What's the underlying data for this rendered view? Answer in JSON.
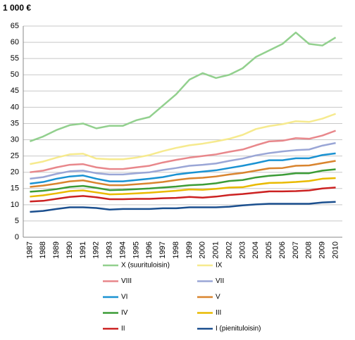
{
  "chart_data": {
    "type": "line",
    "title": "1 000 €",
    "categories": [
      "1987",
      "1988",
      "1989",
      "1990",
      "1991",
      "1992",
      "1993",
      "1994",
      "1995",
      "1996",
      "1997",
      "1998",
      "1999",
      "2000",
      "2001",
      "2002",
      "2003",
      "2004",
      "2005",
      "2006",
      "2007",
      "2008",
      "2009",
      "2010"
    ],
    "ylim": [
      0,
      65
    ],
    "yticks": [
      0,
      5,
      10,
      15,
      20,
      25,
      30,
      35,
      40,
      45,
      50,
      55,
      60,
      65
    ],
    "grid": true,
    "series": [
      {
        "name": "X (suurituloisin)",
        "color": "#92d08e",
        "values": [
          29.5,
          31,
          33,
          34.5,
          35,
          33.5,
          34.3,
          34.3,
          36,
          37,
          40.5,
          44,
          48.5,
          50.5,
          49,
          50,
          52,
          55.5,
          57.5,
          59.5,
          63,
          59.5,
          59,
          61.5
        ]
      },
      {
        "name": "IX",
        "color": "#f6ea8e",
        "values": [
          22.5,
          23.3,
          24.5,
          25.5,
          25.7,
          24.2,
          24,
          24,
          24.5,
          25.3,
          26.5,
          27.5,
          28.3,
          28.8,
          29.5,
          30.3,
          31.5,
          33.3,
          34.2,
          34.8,
          35.7,
          35.5,
          36.5,
          38
        ]
      },
      {
        "name": "VIII",
        "color": "#e8878b",
        "values": [
          20,
          20.5,
          21.5,
          22.3,
          22.5,
          21.5,
          21,
          21,
          21.5,
          22,
          23,
          23.8,
          24.5,
          25,
          25.5,
          26.3,
          27,
          28.3,
          29.5,
          29.7,
          30.5,
          30.3,
          31.3,
          32.8
        ]
      },
      {
        "name": "VII",
        "color": "#9aa6d6",
        "values": [
          18,
          18.5,
          19.5,
          20.3,
          20.5,
          19.7,
          19.3,
          19.3,
          19.7,
          20,
          20.7,
          21.3,
          22,
          22.3,
          22.7,
          23.5,
          24.2,
          25.2,
          25.9,
          26.4,
          26.8,
          27,
          28.2,
          29
        ]
      },
      {
        "name": "VI",
        "color": "#1a92d2",
        "values": [
          16.5,
          17,
          18,
          18.7,
          19,
          18,
          17.2,
          17.2,
          17.6,
          18,
          18.5,
          19.3,
          19.8,
          20.2,
          20.6,
          21.3,
          22,
          22.8,
          23.7,
          23.7,
          24.3,
          24.3,
          25.3,
          25.8
        ]
      },
      {
        "name": "V",
        "color": "#d9842e",
        "values": [
          15.5,
          15.9,
          16.5,
          17.2,
          17.5,
          16.7,
          16,
          16,
          16.3,
          16.6,
          17,
          17.6,
          18.1,
          18.3,
          18.7,
          19.3,
          19.8,
          20.5,
          21.2,
          21.3,
          22,
          22.1,
          22.8,
          23.5
        ]
      },
      {
        "name": "IV",
        "color": "#3c9c37",
        "values": [
          14,
          14.3,
          14.8,
          15.5,
          15.8,
          15.2,
          14.5,
          14.6,
          14.8,
          15,
          15.3,
          15.6,
          16,
          16.2,
          16.6,
          17.3,
          17.6,
          18.4,
          18.9,
          19.2,
          19.7,
          19.7,
          20.5,
          20.9
        ]
      },
      {
        "name": "III",
        "color": "#e9ba00",
        "values": [
          12.5,
          12.9,
          13.5,
          14.2,
          14.4,
          13.8,
          13.2,
          13.3,
          13.5,
          13.7,
          14,
          14.3,
          14.7,
          14.6,
          14.9,
          15.3,
          15.4,
          16.2,
          16.7,
          16.8,
          17,
          17.3,
          18,
          18.2
        ]
      },
      {
        "name": "II",
        "color": "#cc2222",
        "values": [
          11,
          11.2,
          11.8,
          12.4,
          12.7,
          12.3,
          11.7,
          11.7,
          11.8,
          11.8,
          12,
          12.1,
          12.4,
          12.2,
          12.5,
          13,
          13.3,
          13.7,
          14.1,
          14.1,
          14.2,
          14.4,
          15,
          15.3
        ]
      },
      {
        "name": "I (pienituloisin)",
        "color": "#1b4f8e",
        "values": [
          7.8,
          8.1,
          8.7,
          9.2,
          9.2,
          9,
          8.5,
          8.7,
          8.7,
          8.7,
          8.9,
          8.9,
          9.2,
          9.2,
          9.2,
          9.4,
          9.8,
          10.1,
          10.3,
          10.3,
          10.3,
          10.3,
          10.7,
          10.9
        ]
      }
    ]
  }
}
